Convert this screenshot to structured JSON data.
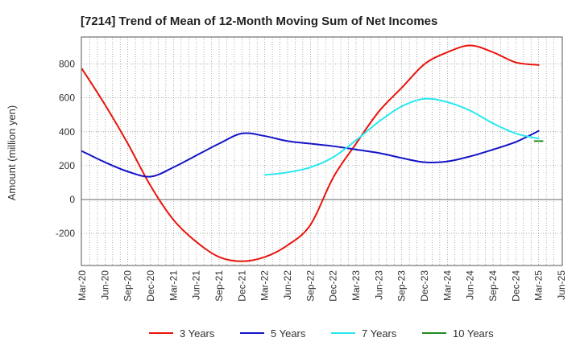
{
  "chart_data": {
    "type": "line",
    "title": "[7214]  Trend of Mean of 12-Month Moving Sum of Net Incomes",
    "xlabel": "",
    "ylabel": "Amount (million yen)",
    "x_tick_labels": [
      "Mar-20",
      "Jun-20",
      "Sep-20",
      "Dec-20",
      "Mar-21",
      "Jun-21",
      "Sep-21",
      "Dec-21",
      "Mar-22",
      "Jun-22",
      "Sep-22",
      "Dec-22",
      "Mar-23",
      "Jun-23",
      "Sep-23",
      "Dec-23",
      "Mar-24",
      "Jun-24",
      "Sep-24",
      "Dec-24",
      "Mar-25",
      "Jun-25"
    ],
    "y_ticks": [
      -200,
      0,
      200,
      400,
      600,
      800
    ],
    "y_tick_labels": [
      "-200",
      "0",
      "200",
      "400",
      "600",
      "800"
    ],
    "ylim": [
      -390,
      960
    ],
    "grid": true,
    "legend_position": "bottom",
    "series": [
      {
        "name": "3 Years",
        "color": "#e8140c",
        "x": [
          "Mar-20",
          "Jun-20",
          "Sep-20",
          "Dec-20",
          "Mar-21",
          "Jun-21",
          "Sep-21",
          "Dec-21",
          "Mar-22",
          "Jun-22",
          "Sep-22",
          "Dec-22",
          "Mar-23",
          "Jun-23",
          "Sep-23",
          "Dec-23",
          "Mar-24",
          "Jun-24",
          "Sep-24",
          "Dec-24",
          "Mar-25"
        ],
        "values": [
          770,
          560,
          330,
          80,
          -120,
          -250,
          -340,
          -365,
          -340,
          -270,
          -150,
          130,
          330,
          520,
          660,
          800,
          870,
          910,
          870,
          810,
          795
        ]
      },
      {
        "name": "5 Years",
        "color": "#1414c8",
        "x": [
          "Mar-20",
          "Jun-20",
          "Sep-20",
          "Dec-20",
          "Mar-21",
          "Jun-21",
          "Sep-21",
          "Dec-21",
          "Mar-22",
          "Jun-22",
          "Sep-22",
          "Dec-22",
          "Mar-23",
          "Jun-23",
          "Sep-23",
          "Dec-23",
          "Mar-24",
          "Jun-24",
          "Sep-24",
          "Dec-24",
          "Mar-25"
        ],
        "values": [
          285,
          220,
          165,
          135,
          190,
          260,
          330,
          390,
          375,
          345,
          330,
          315,
          295,
          275,
          245,
          220,
          225,
          255,
          295,
          340,
          405
        ]
      },
      {
        "name": "7 Years",
        "color": "#28e8f0",
        "x": [
          "Mar-22",
          "Jun-22",
          "Sep-22",
          "Dec-22",
          "Mar-23",
          "Jun-23",
          "Sep-23",
          "Dec-23",
          "Mar-24",
          "Jun-24",
          "Sep-24",
          "Dec-24",
          "Mar-25"
        ],
        "values": [
          145,
          160,
          190,
          250,
          350,
          460,
          550,
          595,
          575,
          525,
          450,
          390,
          360
        ]
      },
      {
        "name": "10 Years",
        "color": "#228b22",
        "x": [
          "Mar-25"
        ],
        "values": [
          345
        ]
      }
    ]
  }
}
